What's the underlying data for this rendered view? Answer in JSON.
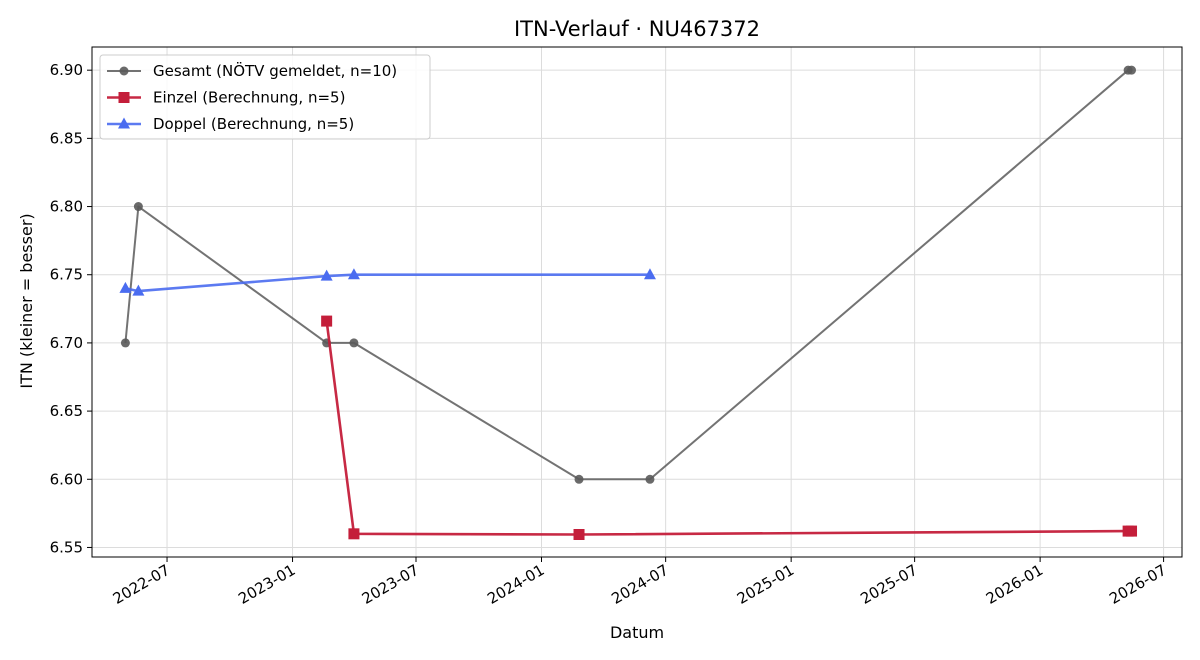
{
  "chart_data": {
    "type": "line",
    "title": "ITN-Verlauf · NU467372",
    "xlabel": "Datum",
    "ylabel": "ITN  (kleiner = besser)",
    "x_scale": "date",
    "xlim": [
      "2022-03-13",
      "2026-07-28"
    ],
    "ylim": [
      6.543,
      6.917
    ],
    "grid": true,
    "legend_position": "top-left",
    "x_ticks": [
      "2022-07",
      "2023-01",
      "2023-07",
      "2024-01",
      "2024-07",
      "2025-01",
      "2025-07",
      "2026-01",
      "2026-07"
    ],
    "y_ticks": [
      "6.55",
      "6.60",
      "6.65",
      "6.70",
      "6.75",
      "6.80",
      "6.85",
      "6.90"
    ],
    "series": [
      {
        "name": "Gesamt (NÖTV gemeldet, n=10)",
        "color": "#5a5a5a",
        "marker": "circle",
        "points": [
          {
            "x": "2022-05-01",
            "y": 6.7
          },
          {
            "x": "2022-05-20",
            "y": 6.8
          },
          {
            "x": "2023-02-20",
            "y": 6.7
          },
          {
            "x": "2023-04-01",
            "y": 6.7
          },
          {
            "x": "2024-02-25",
            "y": 6.6
          },
          {
            "x": "2024-06-08",
            "y": 6.6
          },
          {
            "x": "2026-05-10",
            "y": 6.9
          },
          {
            "x": "2026-05-15",
            "y": 6.9
          }
        ]
      },
      {
        "name": "Einzel (Berechnung, n=5)",
        "color": "#c41e3a",
        "marker": "square",
        "points": [
          {
            "x": "2023-02-20",
            "y": 6.716
          },
          {
            "x": "2023-04-01",
            "y": 6.56
          },
          {
            "x": "2024-02-25",
            "y": 6.5595
          },
          {
            "x": "2026-05-10",
            "y": 6.562
          },
          {
            "x": "2026-05-15",
            "y": 6.562
          }
        ]
      },
      {
        "name": "Doppel (Berechnung, n=5)",
        "color": "#4a6cf0",
        "marker": "triangle",
        "points": [
          {
            "x": "2022-05-01",
            "y": 6.74
          },
          {
            "x": "2022-05-20",
            "y": 6.738
          },
          {
            "x": "2023-02-20",
            "y": 6.749
          },
          {
            "x": "2023-04-01",
            "y": 6.75
          },
          {
            "x": "2024-06-08",
            "y": 6.75
          }
        ]
      }
    ]
  }
}
